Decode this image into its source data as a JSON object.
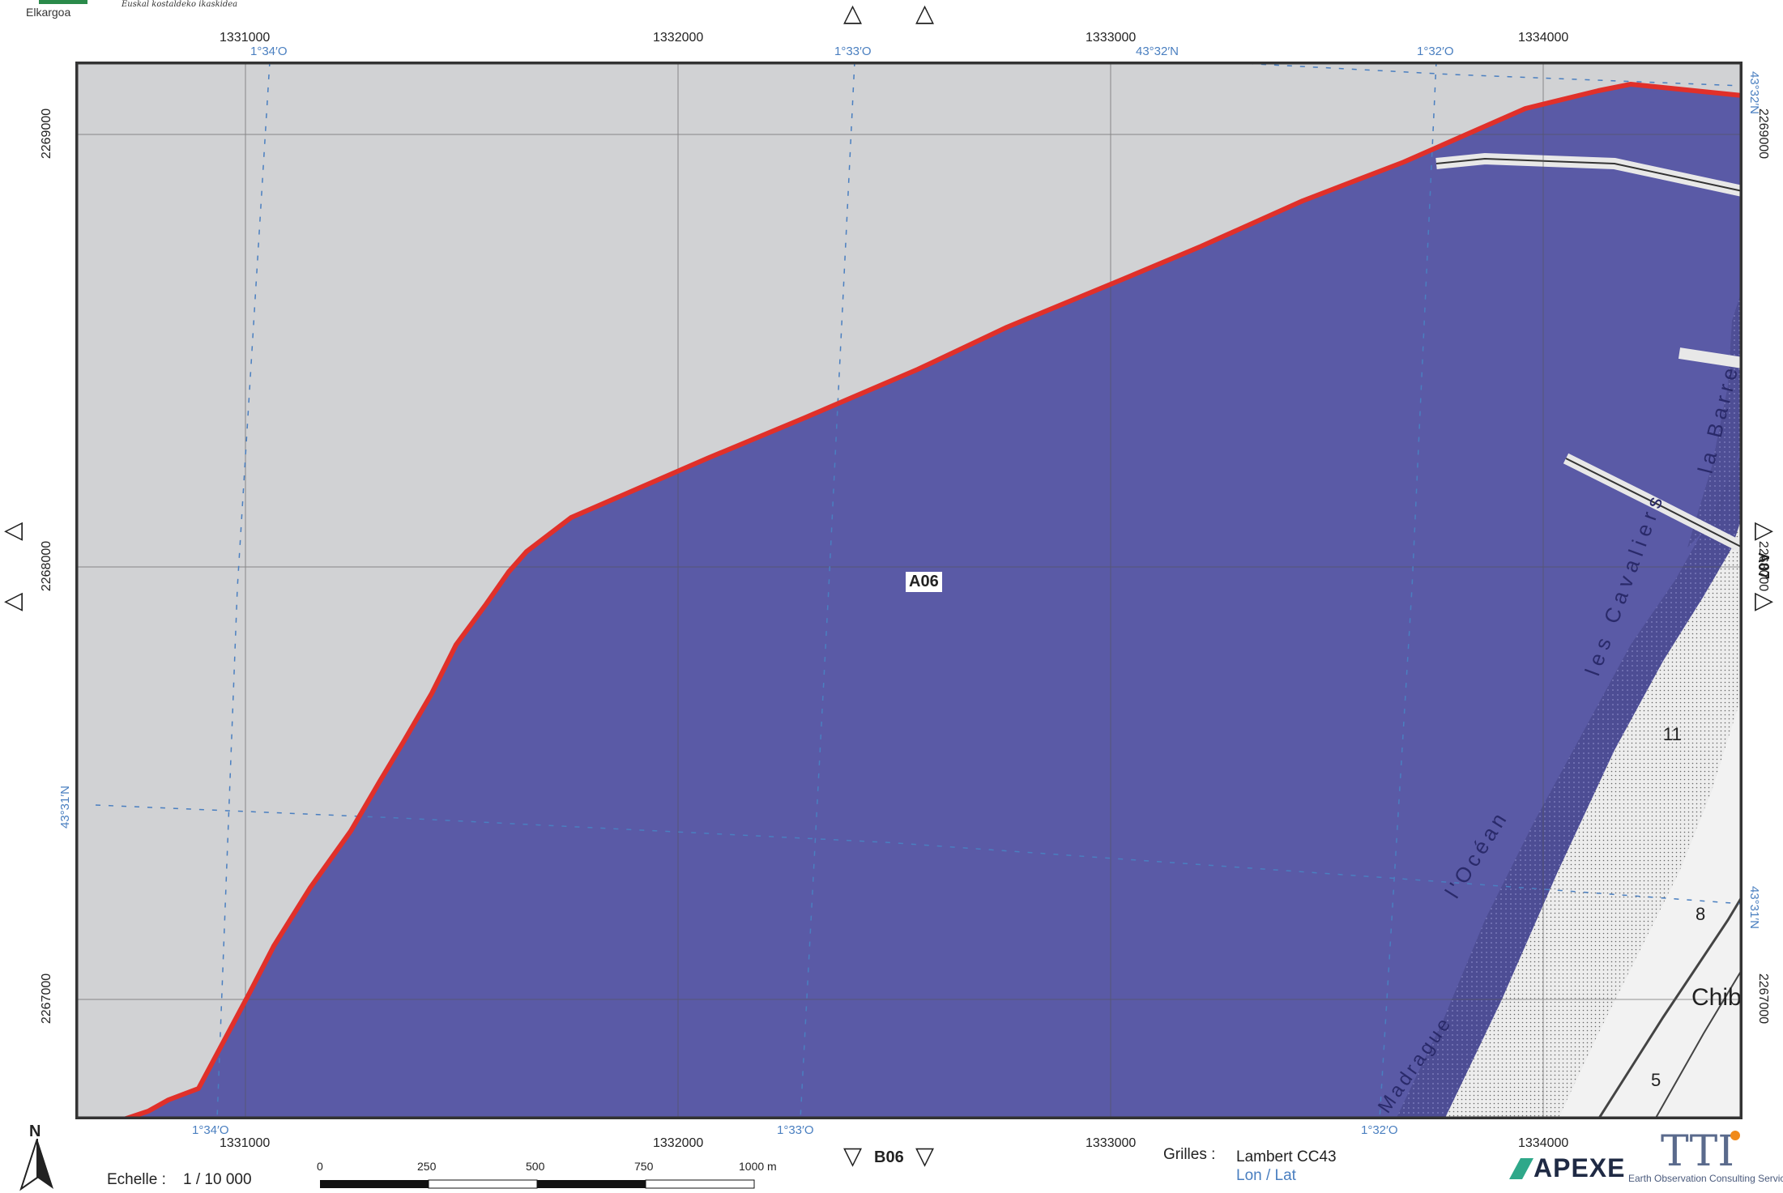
{
  "header": {
    "logo_left_text": "Elkargoa",
    "logo_signature_text": "Euskal kostaldeko ikaskidea"
  },
  "map": {
    "tile_label": "A06",
    "grid_top_labels": [
      "1331000",
      "1332000",
      "1333000",
      "1334000"
    ],
    "grid_bottom_labels": [
      "1331000",
      "1332000",
      "1333000",
      "1334000"
    ],
    "grid_left_labels": [
      "2269000",
      "2268000",
      "2267000"
    ],
    "grid_right_labels": [
      "2269000",
      "2268000",
      "2267000"
    ],
    "graticule_top_labels": [
      "1°34′O",
      "1°33′O",
      "43°32′N",
      "1°32′O"
    ],
    "graticule_bottom_labels": [
      "1°34′O",
      "1°33′O",
      "1°32′O"
    ],
    "graticule_left_label": "43°31′N",
    "graticule_right_labels": [
      "43°32′N",
      "43°31′N"
    ],
    "place_labels": {
      "barre": "la Barre",
      "cavaliers": "les Cavaliers",
      "ocean": "l'Océan",
      "madrague": "Madrague",
      "chib": "Chib",
      "n11": "11",
      "n8": "8",
      "n5": "5"
    },
    "colors": {
      "land_background": "#d1d2d4",
      "sea_zone": "#5a5aa6",
      "boundary": "#e0302a",
      "grid": "#555555",
      "graticule": "#4a7fc0"
    }
  },
  "neighbors": {
    "bottom": "B06",
    "right": "A07"
  },
  "footer": {
    "north": "N",
    "scale_label": "Echelle :",
    "scale_value": "1 / 10 000",
    "scalebar_ticks": [
      "0",
      "250",
      "500",
      "750",
      "1000 m"
    ],
    "grids_label": "Grilles :",
    "grid_lambert": "Lambert CC43",
    "grid_lonlat": "Lon / Lat",
    "logo_apexe": "APEXE",
    "logo_tti": "TTI",
    "logo_tti_subtitle": "Earth Observation Consulting Services"
  }
}
